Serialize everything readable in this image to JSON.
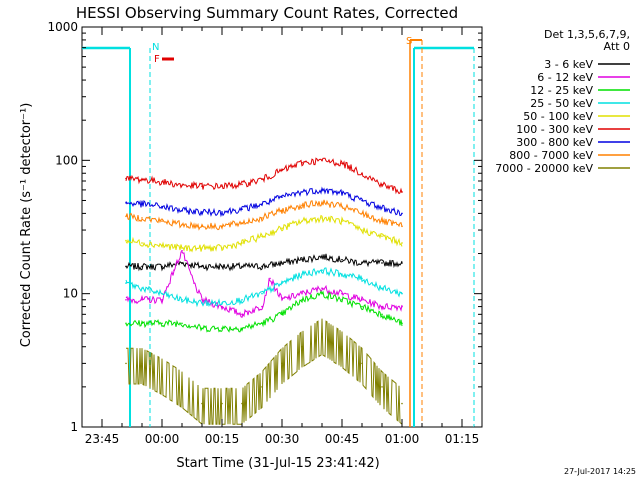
{
  "chart_data": {
    "type": "line",
    "title": "HESSI Observing Summary Count Rates, Corrected",
    "xlabel": "Start Time (31-Jul-15 23:41:42)",
    "ylabel": "Corrected Count Rate (s⁻¹ detector⁻¹)",
    "y_scale": "log",
    "ylim": [
      1,
      1000
    ],
    "xlim_minutes_after_2340": [
      0,
      100
    ],
    "x_ticks": [
      {
        "t": 5,
        "label": "23:45"
      },
      {
        "t": 20,
        "label": "00:00"
      },
      {
        "t": 35,
        "label": "00:15"
      },
      {
        "t": 50,
        "label": "00:30"
      },
      {
        "t": 65,
        "label": "00:45"
      },
      {
        "t": 80,
        "label": "01:00"
      },
      {
        "t": 95,
        "label": "01:15"
      }
    ],
    "y_ticks": [
      {
        "v": 1,
        "label": "1"
      },
      {
        "v": 10,
        "label": "10"
      },
      {
        "v": 100,
        "label": "100"
      },
      {
        "v": 1000,
        "label": "1000"
      }
    ],
    "legend": {
      "title_line1": "Det 1,3,5,6,7,9,",
      "title_line2": "Att 0",
      "placement": "right"
    },
    "series": [
      {
        "name": "3 - 6 keV",
        "color": "#000000",
        "x": [
          "23:51",
          "23:55",
          "00:00",
          "00:05",
          "00:10",
          "00:15",
          "00:20",
          "00:25",
          "00:30",
          "00:35",
          "00:40",
          "00:45",
          "00:50",
          "00:55",
          "01:00"
        ],
        "values": [
          16,
          16,
          16,
          17,
          16,
          16,
          16,
          16,
          17,
          18,
          19,
          18,
          17,
          17,
          17
        ]
      },
      {
        "name": "6 - 12 keV",
        "color": "#e000e0",
        "x": [
          "23:51",
          "23:55",
          "00:00",
          "00:03",
          "00:05",
          "00:08",
          "00:10",
          "00:15",
          "00:20",
          "00:25",
          "00:27",
          "00:30",
          "00:35",
          "00:40",
          "00:45",
          "00:50",
          "00:55",
          "01:00"
        ],
        "values": [
          9,
          9,
          9,
          15,
          21,
          12,
          9,
          8,
          7,
          8,
          13,
          9,
          10,
          11,
          10,
          9,
          8,
          8
        ]
      },
      {
        "name": "12 - 25 keV",
        "color": "#00e000",
        "x": [
          "23:51",
          "23:55",
          "00:00",
          "00:05",
          "00:10",
          "00:15",
          "00:20",
          "00:25",
          "00:30",
          "00:35",
          "00:40",
          "00:45",
          "00:50",
          "00:55",
          "01:00"
        ],
        "values": [
          6,
          6,
          6,
          6,
          5.5,
          5.5,
          5.5,
          6,
          7,
          9,
          10,
          9,
          8,
          7,
          6
        ]
      },
      {
        "name": "25 - 50 keV",
        "color": "#00e0e0",
        "x": [
          "23:51",
          "23:55",
          "00:00",
          "00:05",
          "00:10",
          "00:15",
          "00:20",
          "00:25",
          "00:30",
          "00:35",
          "00:40",
          "00:45",
          "00:50",
          "00:55",
          "01:00"
        ],
        "values": [
          12,
          11,
          10,
          9,
          8.5,
          8.5,
          9,
          10,
          12,
          14,
          15,
          14,
          13,
          11,
          10
        ]
      },
      {
        "name": "50 - 100 keV",
        "color": "#e0e000",
        "x": [
          "23:51",
          "23:55",
          "00:00",
          "00:05",
          "00:10",
          "00:15",
          "00:20",
          "00:25",
          "00:30",
          "00:35",
          "00:40",
          "00:45",
          "00:50",
          "00:55",
          "01:00"
        ],
        "values": [
          25,
          24,
          23,
          22,
          22,
          22,
          24,
          27,
          31,
          35,
          37,
          35,
          30,
          27,
          24
        ]
      },
      {
        "name": "100 - 300 keV",
        "color": "#e00000",
        "x": [
          "23:51",
          "23:55",
          "00:00",
          "00:05",
          "00:10",
          "00:15",
          "00:20",
          "00:25",
          "00:30",
          "00:35",
          "00:40",
          "00:45",
          "00:50",
          "00:55",
          "01:00"
        ],
        "values": [
          73,
          72,
          69,
          65,
          64,
          64,
          66,
          72,
          84,
          96,
          100,
          95,
          80,
          66,
          58
        ]
      },
      {
        "name": "300 - 800 keV",
        "color": "#0000e0",
        "x": [
          "23:51",
          "23:55",
          "00:00",
          "00:05",
          "00:10",
          "00:15",
          "00:20",
          "00:25",
          "00:30",
          "00:35",
          "00:40",
          "00:45",
          "00:50",
          "00:55",
          "01:00"
        ],
        "values": [
          48,
          47,
          45,
          42,
          41,
          41,
          43,
          47,
          53,
          58,
          60,
          57,
          50,
          44,
          40
        ]
      },
      {
        "name": "800 - 7000 keV",
        "color": "#ff8000",
        "x": [
          "23:51",
          "23:55",
          "00:00",
          "00:05",
          "00:10",
          "00:15",
          "00:20",
          "00:25",
          "00:30",
          "00:35",
          "00:40",
          "00:45",
          "00:50",
          "00:55",
          "01:00"
        ],
        "values": [
          38,
          37,
          35,
          33,
          32,
          32,
          34,
          37,
          42,
          46,
          48,
          45,
          40,
          35,
          32
        ]
      },
      {
        "name": "7000 - 20000 keV",
        "color": "#808000",
        "x": [
          "23:51",
          "23:55",
          "00:00",
          "00:05",
          "00:10",
          "00:15",
          "00:20",
          "00:25",
          "00:30",
          "00:35",
          "00:40",
          "00:45",
          "00:50",
          "00:55",
          "01:00"
        ],
        "values": [
          3,
          3,
          2.5,
          2,
          1.5,
          1.5,
          1.5,
          2,
          3,
          4,
          5,
          4,
          3,
          2,
          1.5
        ]
      }
    ],
    "annotations": [
      {
        "text": "N",
        "color": "#00e0e0",
        "at": "23:57"
      },
      {
        "text": "F",
        "color": "#e00000",
        "at": "23:59"
      },
      {
        "text": "S",
        "color": "#ff8000",
        "at": "01:02"
      }
    ]
  },
  "footer": {
    "timestamp": "27-Jul-2017 14:25"
  }
}
